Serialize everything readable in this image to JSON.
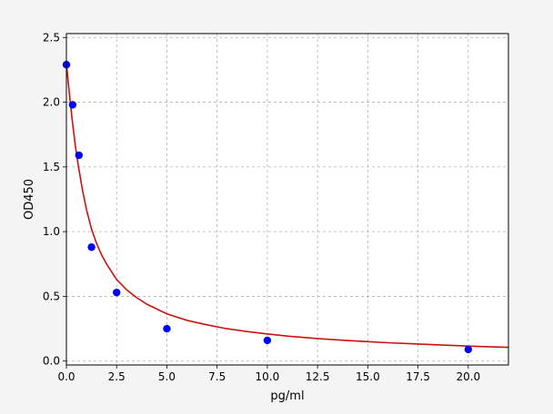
{
  "chart_data": {
    "type": "scatter",
    "title": "",
    "xlabel": "pg/ml",
    "ylabel": "OD450",
    "xlim": [
      0,
      22
    ],
    "ylim": [
      -0.03,
      2.53
    ],
    "grid": true,
    "x_ticks": [
      0,
      2.5,
      5,
      7.5,
      10,
      12.5,
      15,
      17.5,
      20
    ],
    "x_tick_labels": [
      "0.0",
      "2.5",
      "5.0",
      "7.5",
      "10.0",
      "12.5",
      "15.0",
      "17.5",
      "20.0"
    ],
    "y_ticks": [
      0,
      0.5,
      1,
      1.5,
      2,
      2.5
    ],
    "y_tick_labels": [
      "0.0",
      "0.5",
      "1.0",
      "1.5",
      "2.0",
      "2.5"
    ],
    "points": {
      "x": [
        0,
        0.312,
        0.625,
        1.25,
        2.5,
        5,
        10,
        20
      ],
      "y": [
        2.29,
        1.98,
        1.59,
        0.88,
        0.53,
        0.25,
        0.16,
        0.09
      ],
      "color": "#0000ff"
    },
    "fit_curve": {
      "color": "#cc1111",
      "x": [
        0,
        0.1,
        0.2,
        0.3,
        0.45,
        0.6,
        0.8,
        1.0,
        1.25,
        1.5,
        1.75,
        2.0,
        2.5,
        3.0,
        3.5,
        4.0,
        5.0,
        6.0,
        7.0,
        8.0,
        9.0,
        10.0,
        11.0,
        12.5,
        14.0,
        15.0,
        16.0,
        17.5,
        19.0,
        20.0,
        21.0,
        22.0
      ],
      "y": [
        2.3,
        2.14,
        1.99,
        1.85,
        1.66,
        1.5,
        1.32,
        1.17,
        1.02,
        0.91,
        0.82,
        0.75,
        0.63,
        0.55,
        0.49,
        0.44,
        0.365,
        0.315,
        0.28,
        0.25,
        0.228,
        0.21,
        0.193,
        0.174,
        0.159,
        0.15,
        0.142,
        0.132,
        0.122,
        0.116,
        0.111,
        0.106
      ]
    }
  }
}
